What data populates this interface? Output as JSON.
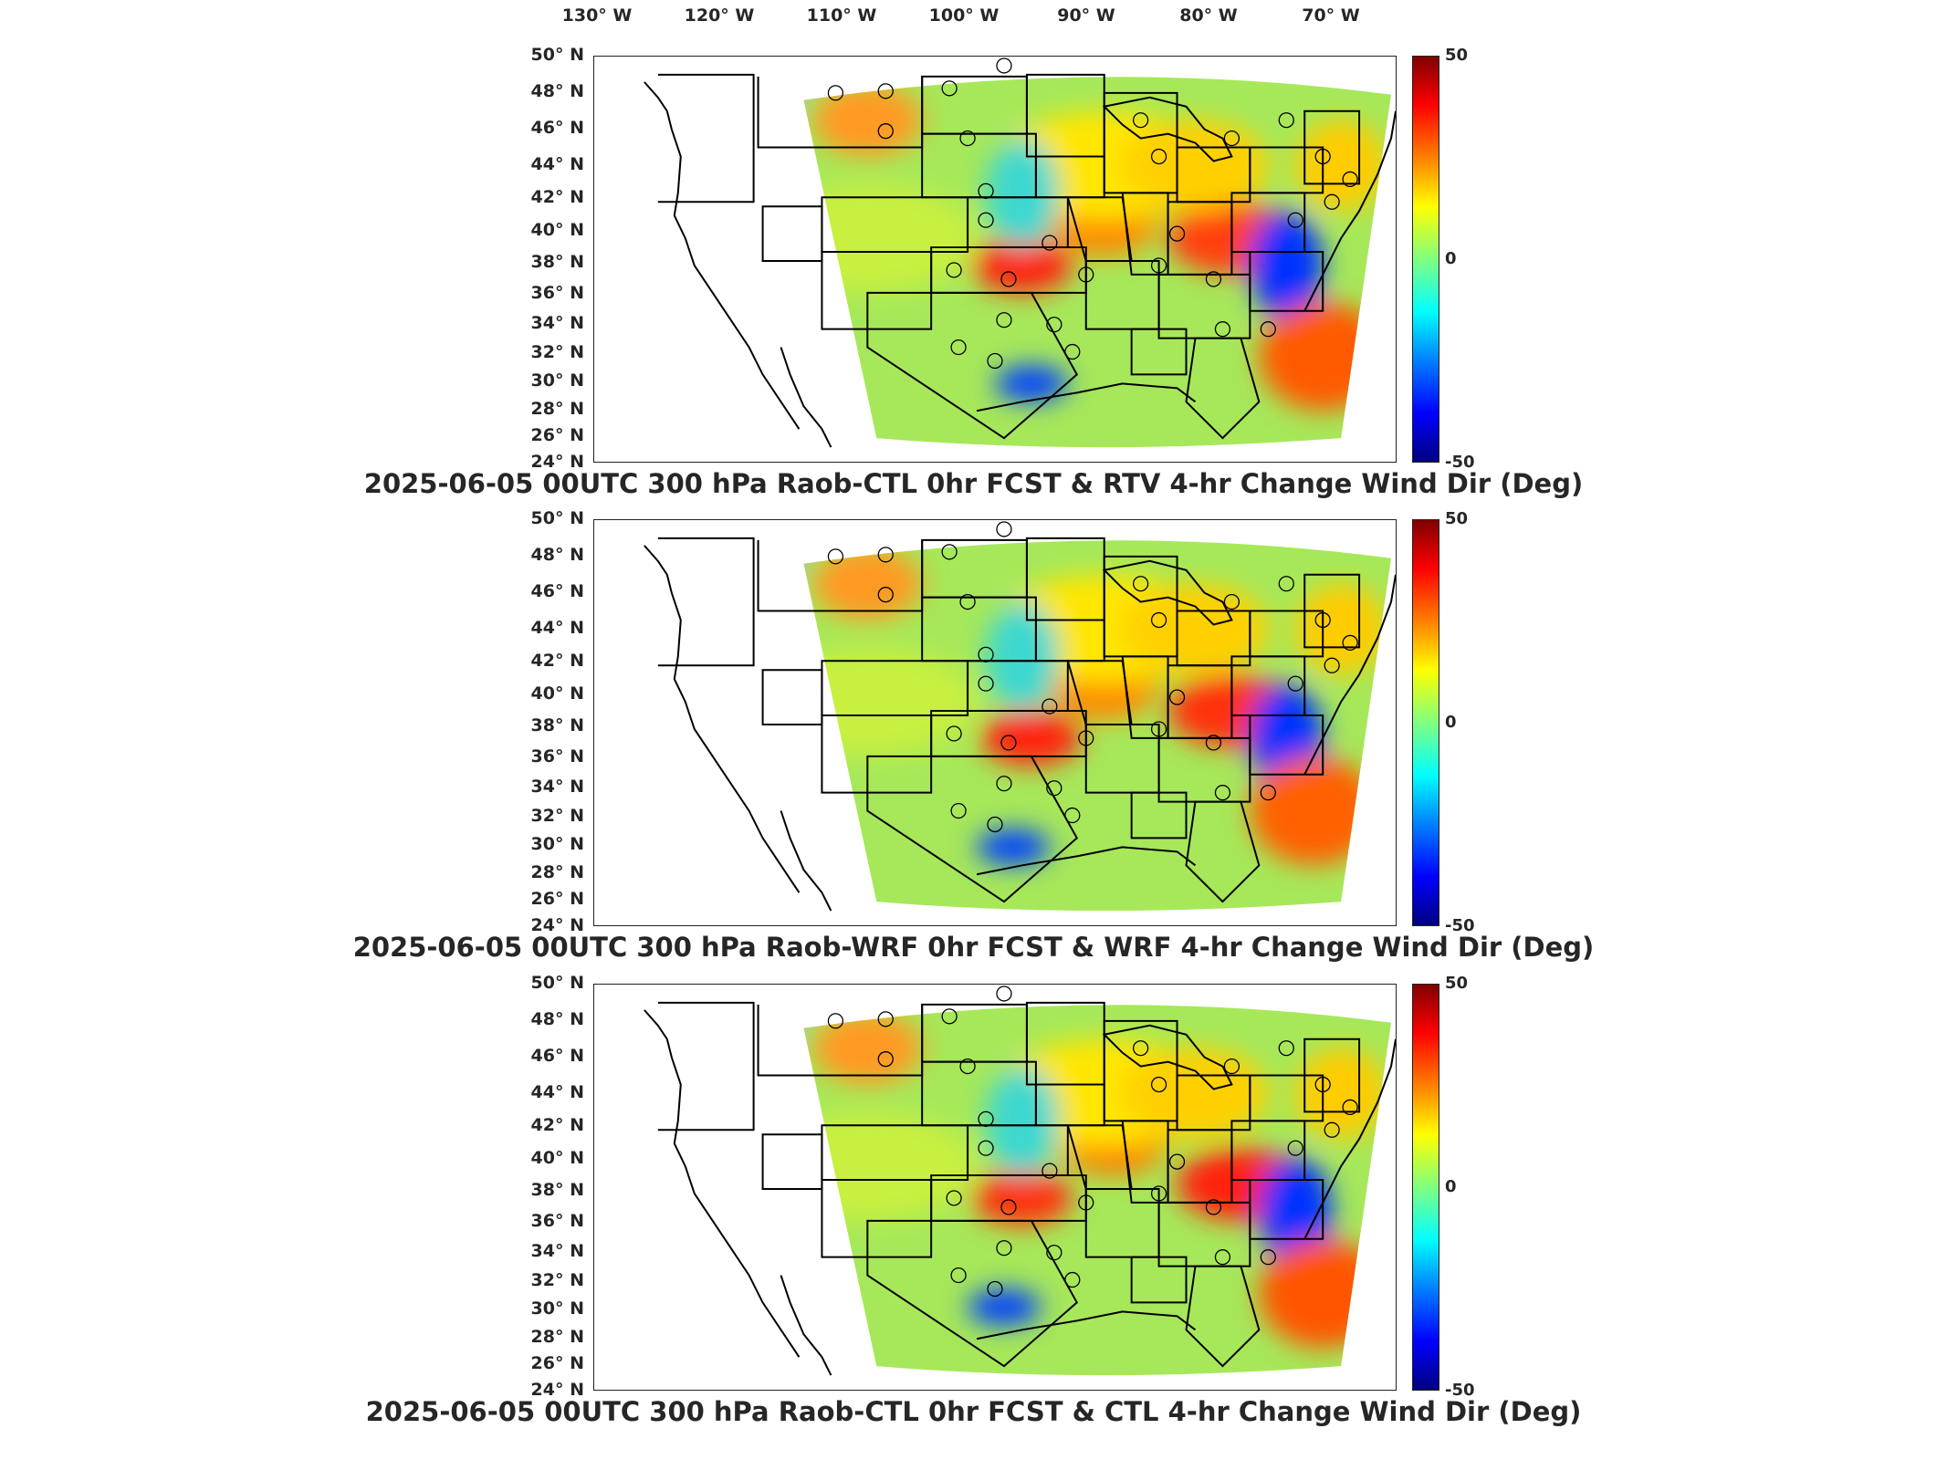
{
  "longitude_labels": [
    "130° W",
    "120° W",
    "110° W",
    "100° W",
    "90° W",
    "80° W",
    "70° W"
  ],
  "latitude_labels": [
    "50° N",
    "48° N",
    "46° N",
    "44° N",
    "42° N",
    "40° N",
    "38° N",
    "36° N",
    "34° N",
    "32° N",
    "30° N",
    "28° N",
    "26° N",
    "24° N"
  ],
  "colorbar": {
    "max_label": "50",
    "mid_label": "0",
    "min_label": "-50",
    "range": [
      -50,
      50
    ],
    "colormap": "jet"
  },
  "panels": [
    {
      "title": "2025-06-05 00UTC 300 hPa Raob-CTL 0hr FCST & RTV 4-hr Change Wind Dir (Deg)"
    },
    {
      "title": "2025-06-05 00UTC 300 hPa Raob-WRF 0hr FCST & WRF 4-hr Change Wind Dir (Deg)"
    },
    {
      "title": "2025-06-05 00UTC 300 hPa Raob-CTL 0hr FCST & CTL 4-hr Change Wind Dir (Deg)"
    }
  ],
  "colors": {
    "axis": "#222222",
    "text": "#262626",
    "station_circle": "#000000"
  }
}
